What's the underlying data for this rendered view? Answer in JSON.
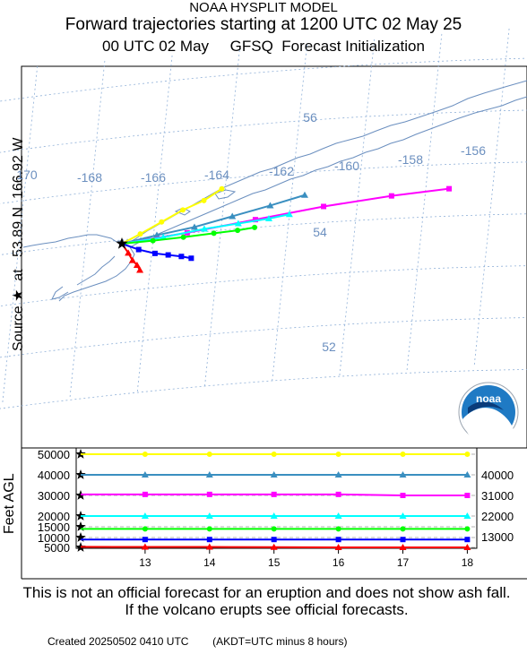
{
  "header": {
    "model": "NOAA HYSPLIT MODEL",
    "title": "Forward trajectories starting at 1200 UTC 02 May 25",
    "meteo_time": "00 UTC 02 May",
    "meteo_source": "GFSQ  Forecast Initialization"
  },
  "side_label": "Source ★  at   53.89 N  166.92 W",
  "feet_label": "Feet AGL",
  "logo_text": "noaa",
  "disclaimer": "This is not an official forecast for an eruption and does not show ash fall. If the volcano erupts see official forecasts.",
  "footer": {
    "created": "Created 20250502 0410 UTC",
    "note": "(AKDT=UTC minus 8 hours)"
  },
  "colors": {
    "map": "#6b8fbf",
    "grid": "#8fb0d8",
    "yellow": "#ffff00",
    "steelblue": "#3a8fc0",
    "magenta": "#ff00ff",
    "cyan": "#00ffff",
    "green": "#00ff00",
    "blue": "#0000ff",
    "red": "#ff0000"
  },
  "chart_data": [
    {
      "type": "scatter",
      "description": "trajectory map",
      "lon_labels": [
        "170",
        "-168",
        "-166",
        "-164",
        "-162",
        "-160",
        "-158",
        "-156"
      ],
      "lat_labels": [
        "56",
        "54",
        "52"
      ],
      "source": {
        "lat": 53.89,
        "lon": -166.92
      },
      "series": [
        {
          "height_ft": 50000,
          "color": "yellow",
          "points": [
            [
              -166.92,
              53.89
            ],
            [
              -166.4,
              54.05
            ],
            [
              -165.8,
              54.25
            ],
            [
              -165.2,
              54.45
            ],
            [
              -164.6,
              54.6
            ],
            [
              -164.1,
              54.8
            ]
          ]
        },
        {
          "height_ft": 40000,
          "color": "steelblue",
          "points": [
            [
              -166.92,
              53.89
            ],
            [
              -165.9,
              54.0
            ],
            [
              -164.8,
              54.1
            ],
            [
              -163.7,
              54.25
            ],
            [
              -162.6,
              54.4
            ],
            [
              -161.6,
              54.55
            ]
          ]
        },
        {
          "height_ft": 31000,
          "color": "magenta",
          "points": [
            [
              -166.92,
              53.89
            ],
            [
              -165.0,
              54.0
            ],
            [
              -163.0,
              54.15
            ],
            [
              -161.0,
              54.3
            ],
            [
              -159.0,
              54.4
            ],
            [
              -157.3,
              54.45
            ]
          ]
        },
        {
          "height_ft": 22000,
          "color": "cyan",
          "points": [
            [
              -166.92,
              53.89
            ],
            [
              -165.7,
              53.95
            ],
            [
              -164.5,
              54.05
            ],
            [
              -163.5,
              54.1
            ],
            [
              -162.6,
              54.15
            ],
            [
              -162.0,
              54.2
            ]
          ]
        },
        {
          "height_ft": 13000,
          "color": "green",
          "points": [
            [
              -166.92,
              53.89
            ],
            [
              -166.0,
              53.9
            ],
            [
              -165.1,
              53.92
            ],
            [
              -164.2,
              53.95
            ],
            [
              -163.5,
              53.97
            ],
            [
              -163.0,
              54.0
            ]
          ]
        },
        {
          "height_ft": 8000,
          "color": "blue",
          "points": [
            [
              -166.92,
              53.89
            ],
            [
              -166.4,
              53.75
            ],
            [
              -165.9,
              53.65
            ],
            [
              -165.5,
              53.6
            ],
            [
              -165.1,
              53.55
            ],
            [
              -164.8,
              53.5
            ]
          ]
        },
        {
          "height_ft": 2000,
          "color": "red",
          "points": [
            [
              -166.92,
              53.89
            ],
            [
              -166.7,
              53.7
            ],
            [
              -166.55,
              53.55
            ],
            [
              -166.4,
              53.45
            ],
            [
              -166.3,
              53.35
            ]
          ]
        }
      ]
    },
    {
      "type": "line",
      "description": "height vs time",
      "x": [
        12,
        13,
        14,
        15,
        16,
        17,
        18
      ],
      "xticks": [
        "13",
        "14",
        "15",
        "16",
        "17",
        "18"
      ],
      "yticks_left": [
        "50000",
        "40000",
        "30000",
        "20000",
        "15000",
        "10000",
        "5000"
      ],
      "yticks_right": [
        "40000",
        "31000",
        "22000",
        "13000"
      ],
      "ylabel": "Feet AGL",
      "series": [
        {
          "color": "yellow",
          "values": [
            50000,
            50000,
            50000,
            50000,
            50000,
            50000,
            50000
          ]
        },
        {
          "color": "steelblue",
          "values": [
            40000,
            40000,
            40000,
            40000,
            40000,
            40000,
            40000
          ]
        },
        {
          "color": "magenta",
          "values": [
            30500,
            30500,
            30500,
            30500,
            30500,
            30000,
            30000
          ]
        },
        {
          "color": "cyan",
          "values": [
            20000,
            20000,
            20000,
            20000,
            20000,
            20000,
            20000
          ]
        },
        {
          "color": "green",
          "values": [
            14000,
            14000,
            14000,
            14000,
            14000,
            14000,
            14000
          ]
        },
        {
          "color": "blue",
          "values": [
            9000,
            9000,
            9000,
            9000,
            9000,
            9000,
            9000
          ]
        },
        {
          "color": "red",
          "values": [
            5300,
            5200,
            5200,
            5100,
            5000,
            5000,
            5000
          ]
        }
      ]
    }
  ]
}
